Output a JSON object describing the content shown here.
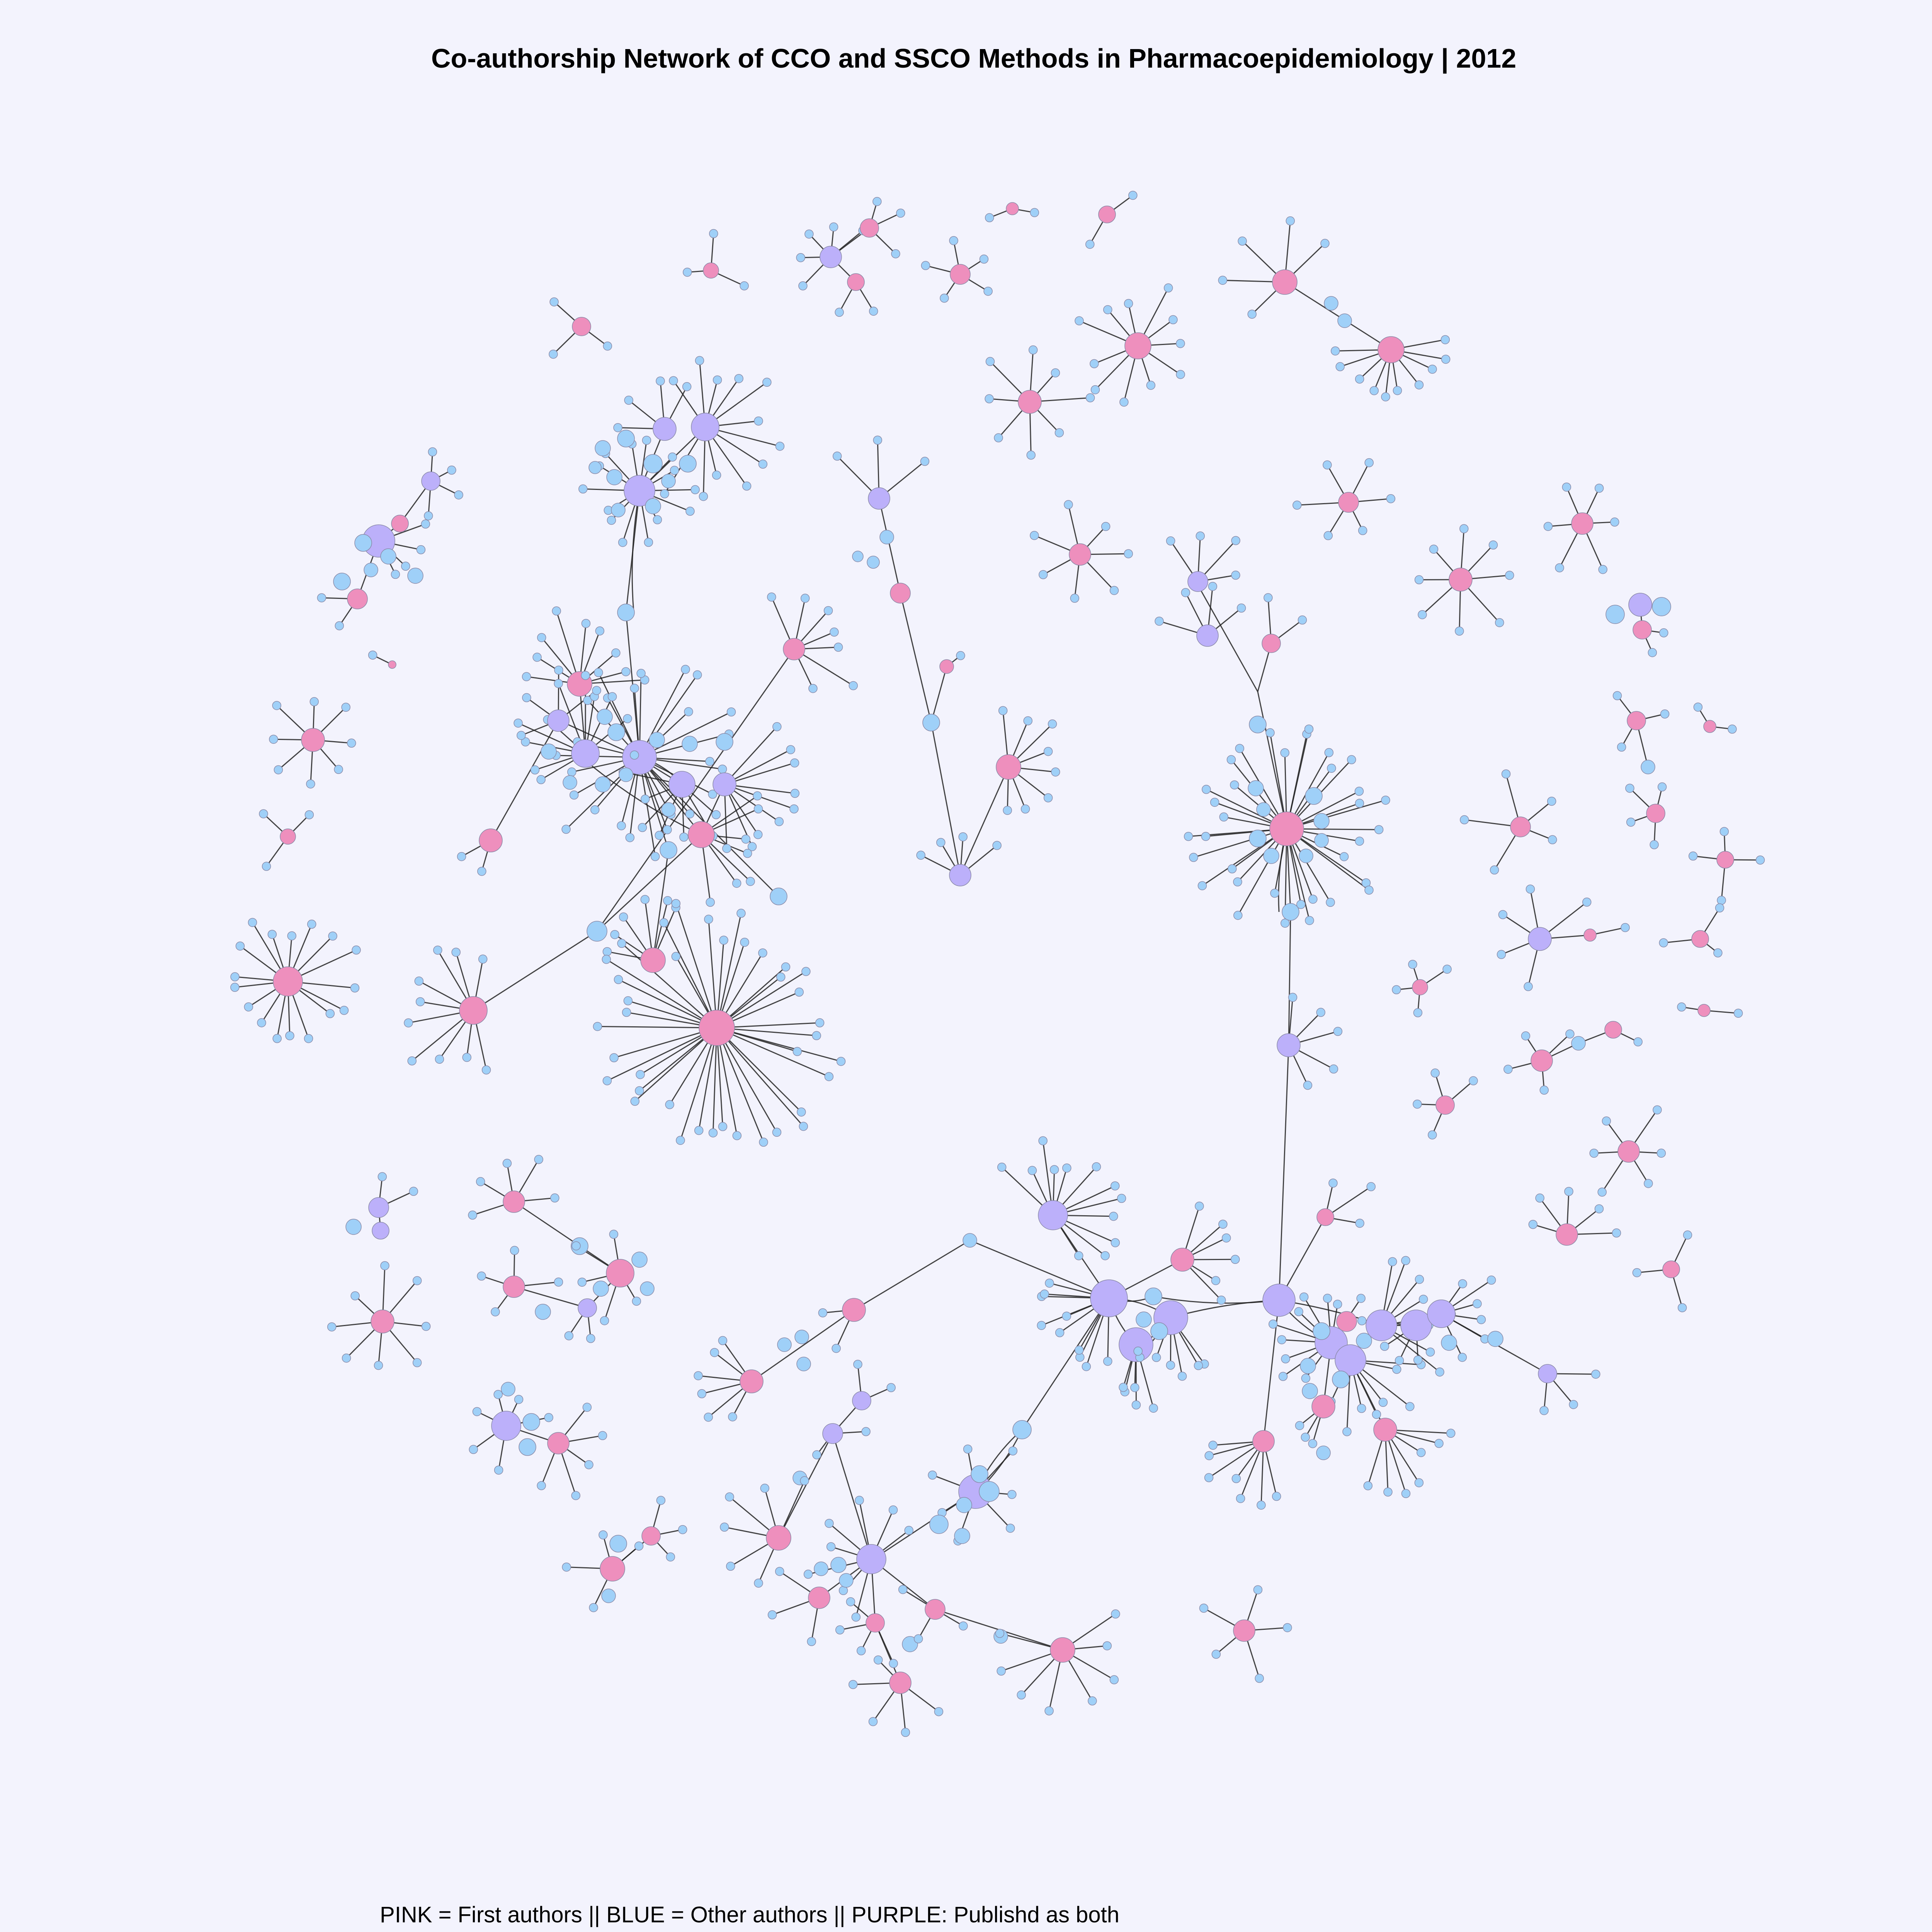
{
  "title": "Co-authorship Network of CCO and SSCO Methods in Pharmacoepidemiology |  2012",
  "caption": "PINK = First authors || BLUE = Other authors || PURPLE: Publishd as both",
  "legend": {
    "first_author": {
      "label": "PINK",
      "meaning": "First authors",
      "color": "#ee8fbd"
    },
    "other_author": {
      "label": "BLUE",
      "meaning": "Other authors",
      "color": "#9fd0f8"
    },
    "both": {
      "label": "PURPLE",
      "meaning": "Publishd as both",
      "color": "#bcb0fa"
    }
  },
  "colors": {
    "background": "#f3f3fd",
    "edge": "#222222",
    "node_outline": "#8a8aa8"
  }
}
